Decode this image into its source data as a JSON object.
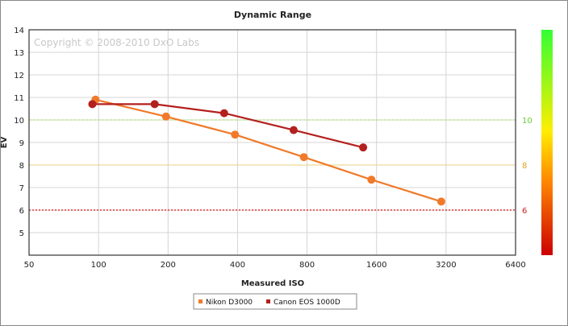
{
  "chart_data": {
    "type": "line",
    "title": "Dynamic Range",
    "watermark": "Copyright © 2008-2010 DxO Labs",
    "xlabel": "Measured ISO",
    "ylabel": "EV",
    "x_scale": "log2",
    "xlim": [
      50,
      6400
    ],
    "ylim": [
      4,
      14
    ],
    "x_ticks": [
      50,
      100,
      200,
      400,
      800,
      1600,
      3200,
      6400
    ],
    "y_ticks": [
      5,
      6,
      7,
      8,
      9,
      10,
      11,
      12,
      13,
      14
    ],
    "grid": true,
    "legend_position": "bottom-center",
    "right_scale": {
      "ticks": [
        {
          "label": "10",
          "value": 10,
          "color": "#66cc33"
        },
        {
          "label": "8",
          "value": 8,
          "color": "#dda422"
        },
        {
          "label": "6",
          "value": 6,
          "color": "#cc2222"
        }
      ],
      "gradient_colors": [
        "#cc0000",
        "#ff8800",
        "#ffee00",
        "#33ff33"
      ]
    },
    "reference_lines": [
      {
        "y": 10,
        "color": "#9fdd66",
        "style": "dashed"
      },
      {
        "y": 8,
        "color": "#e8d080",
        "style": "solid"
      },
      {
        "y": 6,
        "color": "#dd1111",
        "style": "dotted"
      }
    ],
    "series": [
      {
        "name": "Nikon D3000",
        "color": "#f07a2a",
        "x": [
          97,
          196,
          390,
          775,
          1520,
          3050
        ],
        "y": [
          10.9,
          10.15,
          9.35,
          8.35,
          7.35,
          6.38
        ]
      },
      {
        "name": "Canon EOS 1000D",
        "color": "#b3201e",
        "x": [
          94,
          175,
          350,
          700,
          1400
        ],
        "y": [
          10.7,
          10.7,
          10.3,
          9.55,
          8.78
        ]
      }
    ]
  }
}
